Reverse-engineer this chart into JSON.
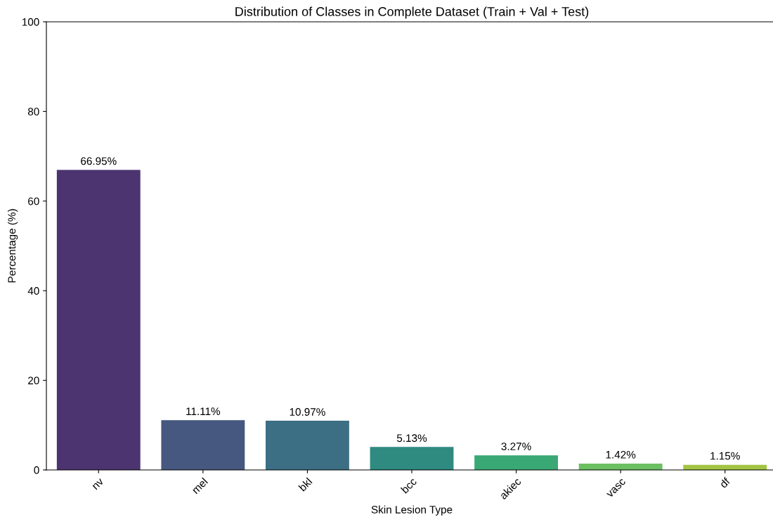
{
  "chart_data": {
    "type": "bar",
    "title": "Distribution of Classes in Complete Dataset (Train + Val + Test)",
    "xlabel": "Skin Lesion Type",
    "ylabel": "Percentage (%)",
    "categories": [
      "nv",
      "mel",
      "bkl",
      "bcc",
      "akiec",
      "vasc",
      "df"
    ],
    "values": [
      66.95,
      11.11,
      10.97,
      5.13,
      3.27,
      1.42,
      1.15
    ],
    "colors": [
      "#4b3470",
      "#46587f",
      "#3c6f84",
      "#2f8a80",
      "#3aa874",
      "#6cc062",
      "#a3c443"
    ],
    "value_labels": [
      "66.95%",
      "11.11%",
      "10.97%",
      "5.13%",
      "3.27%",
      "1.42%",
      "1.15%"
    ],
    "ylim": [
      0,
      100
    ],
    "yticks": [
      0,
      20,
      40,
      60,
      80,
      100
    ],
    "grid": false,
    "legend": false
  }
}
